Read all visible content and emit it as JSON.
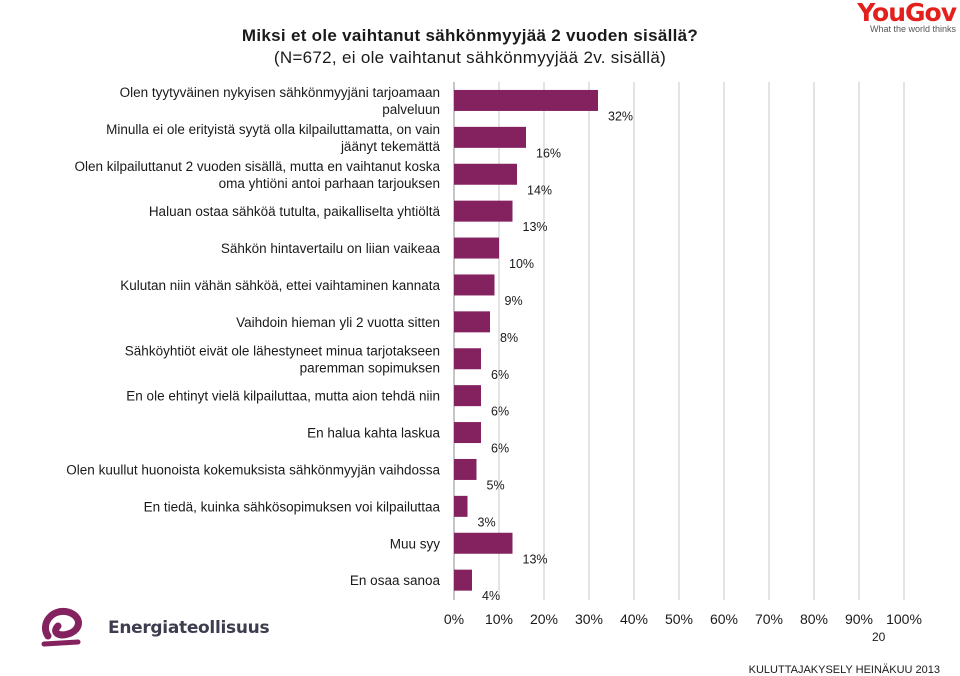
{
  "header": {
    "title": "Miksi et ole vaihtanut sähkönmyyjää 2 vuoden sisällä?",
    "subtitle": "(N=672, ei ole vaihtanut sähkönmyyjää 2v. sisällä)"
  },
  "logos": {
    "yougov_word": "YouGov",
    "yougov_tagline": "What the world thinks",
    "energia_name": "Energiateollisuus"
  },
  "footer": {
    "page_number": "20",
    "survey": "KULUTTAJAKYSELY HEINÄKUU 2013"
  },
  "chart_data": {
    "type": "bar",
    "orientation": "horizontal",
    "bar_color": "#84225f",
    "grid": true,
    "xlim": [
      0,
      100
    ],
    "x_ticks": [
      "0%",
      "10%",
      "20%",
      "30%",
      "40%",
      "50%",
      "60%",
      "70%",
      "80%",
      "90%",
      "100%"
    ],
    "categories": [
      [
        "Olen tyytyväinen nykyisen sähkönmyyjäni tarjoamaan",
        "palveluun"
      ],
      [
        "Minulla ei ole erityistä syytä olla kilpailuttamatta, on vain",
        "jäänyt tekemättä"
      ],
      [
        "Olen kilpailuttanut 2 vuoden sisällä, mutta en vaihtanut koska",
        "oma yhtiöni antoi parhaan tarjouksen"
      ],
      [
        "Haluan ostaa sähköä tutulta, paikalliselta yhtiöltä"
      ],
      [
        "Sähkön hintavertailu on liian vaikeaa"
      ],
      [
        "Kulutan niin vähän sähköä, ettei vaihtaminen kannata"
      ],
      [
        "Vaihdoin hieman yli 2 vuotta sitten"
      ],
      [
        "Sähköyhtiöt eivät ole lähestyneet minua tarjotakseen",
        "paremman sopimuksen"
      ],
      [
        "En ole ehtinyt vielä kilpailuttaa, mutta aion tehdä niin"
      ],
      [
        "En halua kahta laskua"
      ],
      [
        "Olen kuullut huonoista kokemuksista sähkönmyyjän vaihdossa"
      ],
      [
        "En tiedä, kuinka sähkösopimuksen voi kilpailuttaa"
      ],
      [
        "Muu syy"
      ],
      [
        "En osaa sanoa"
      ]
    ],
    "values": [
      32,
      16,
      14,
      13,
      10,
      9,
      8,
      6,
      6,
      6,
      5,
      3,
      13,
      4
    ],
    "value_labels": [
      "32%",
      "16%",
      "14%",
      "13%",
      "10%",
      "9%",
      "8%",
      "6%",
      "6%",
      "6%",
      "5%",
      "3%",
      "13%",
      "4%"
    ]
  }
}
